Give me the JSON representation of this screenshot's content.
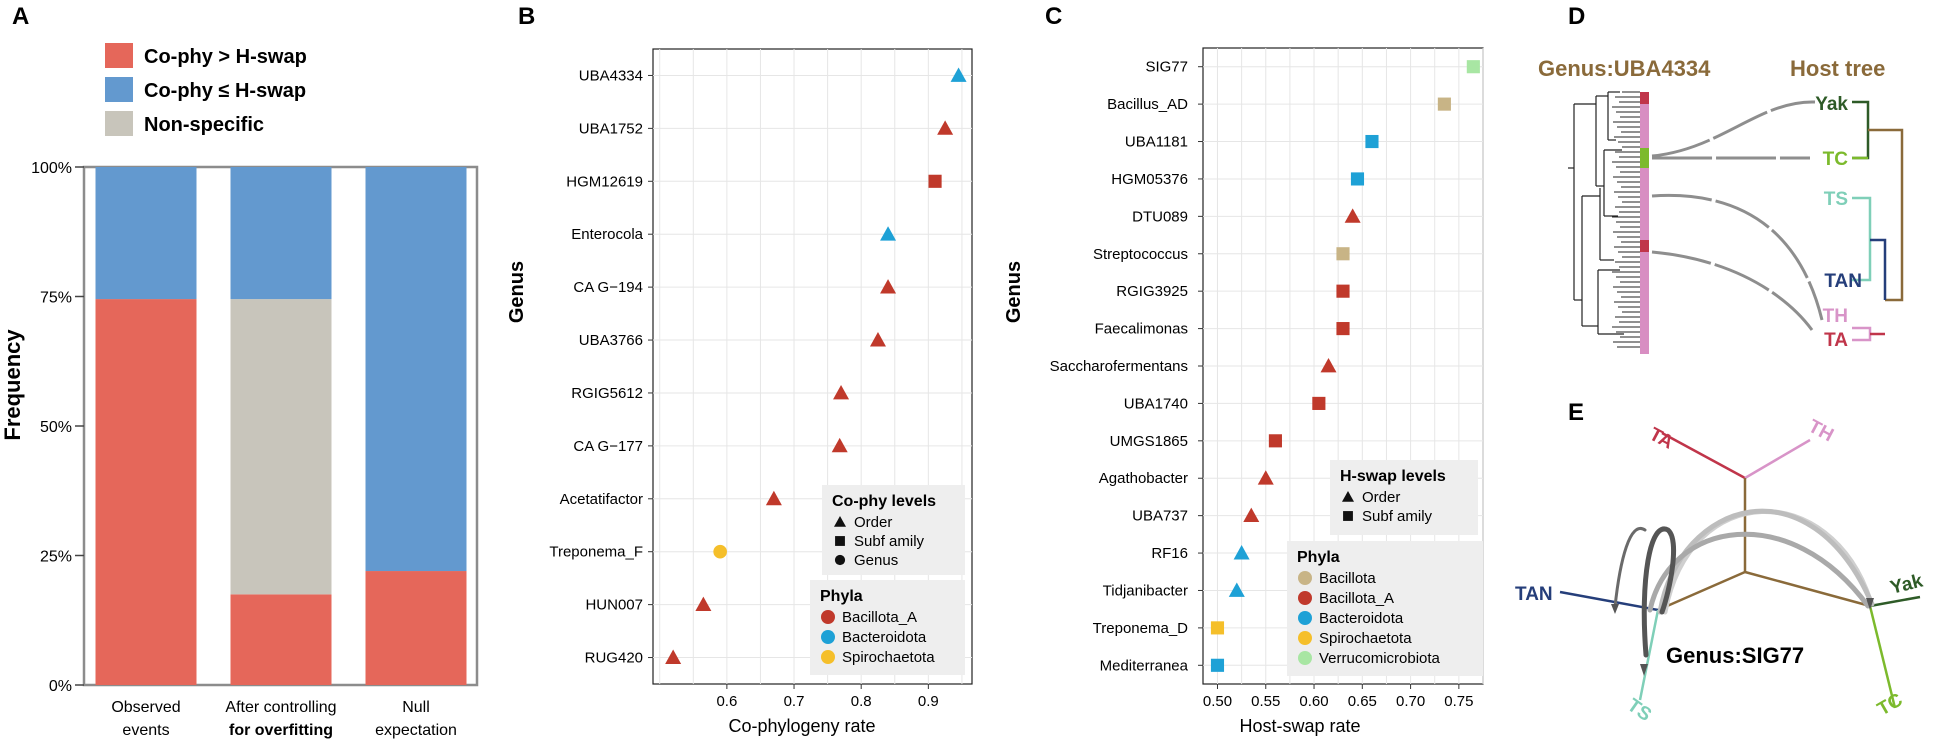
{
  "panels": {
    "A": "A",
    "B": "B",
    "C": "C",
    "D": "D",
    "E": "E"
  },
  "chart_data": [
    {
      "id": "A",
      "type": "bar",
      "stacked": true,
      "xlabel": "",
      "ylabel": "Frequency",
      "ylim": [
        0,
        100
      ],
      "yticks": [
        "0%",
        "25%",
        "50%",
        "75%",
        "100%"
      ],
      "categories": [
        {
          "line1": "Observed",
          "line2": "events",
          "bold2": false
        },
        {
          "line1": "After controlling",
          "line2": "for overfitting",
          "bold2": true
        },
        {
          "line1": "Null",
          "line2": "expectation",
          "bold2": false
        }
      ],
      "series": [
        {
          "name": "Co-phy > H-swap",
          "color": "#e5675a",
          "values": [
            74.5,
            17.5,
            22
          ]
        },
        {
          "name": "Non-specific",
          "color": "#c8c5bb",
          "values": [
            0,
            57,
            0
          ]
        },
        {
          "name": "Co-phy ≤ H-swap",
          "color": "#6399cf",
          "values": [
            25.5,
            25.5,
            78
          ]
        }
      ],
      "legend": [
        "Co-phy > H-swap",
        "Co-phy ≤ H-swap",
        "Non-specific"
      ],
      "legend_colors": [
        "#e5675a",
        "#6399cf",
        "#c8c5bb"
      ]
    },
    {
      "id": "B",
      "type": "scatter",
      "xlabel": "Co-phylogeny rate",
      "ylabel": "Genus",
      "xlim": [
        0.49,
        0.965
      ],
      "xticks": [
        0.6,
        0.7,
        0.8,
        0.9
      ],
      "points": [
        {
          "genus": "UBA4334",
          "x": 0.945,
          "phylum": "Bacteroidota",
          "level": "Order"
        },
        {
          "genus": "UBA1752",
          "x": 0.925,
          "phylum": "Bacillota_A",
          "level": "Order"
        },
        {
          "genus": "HGM12619",
          "x": 0.91,
          "phylum": "Bacillota_A",
          "level": "Subfamily"
        },
        {
          "genus": "Enterocola",
          "x": 0.84,
          "phylum": "Bacteroidota",
          "level": "Order"
        },
        {
          "genus": "CA G−194",
          "x": 0.84,
          "phylum": "Bacillota_A",
          "level": "Order"
        },
        {
          "genus": "UBA3766",
          "x": 0.825,
          "phylum": "Bacillota_A",
          "level": "Order"
        },
        {
          "genus": "RGIG5612",
          "x": 0.77,
          "phylum": "Bacillota_A",
          "level": "Order"
        },
        {
          "genus": "CA G−177",
          "x": 0.768,
          "phylum": "Bacillota_A",
          "level": "Order"
        },
        {
          "genus": "Acetatifactor",
          "x": 0.67,
          "phylum": "Bacillota_A",
          "level": "Order"
        },
        {
          "genus": "Treponema_F",
          "x": 0.59,
          "phylum": "Spirochaetota",
          "level": "Genus"
        },
        {
          "genus": "HUN007",
          "x": 0.565,
          "phylum": "Bacillota_A",
          "level": "Order"
        },
        {
          "genus": "RUG420",
          "x": 0.52,
          "phylum": "Bacillota_A",
          "level": "Order"
        }
      ],
      "legend_shape_title": "Co-phy levels",
      "legend_shapes": [
        {
          "label": "Order",
          "shape": "triangle"
        },
        {
          "label": "Subf amily",
          "shape": "square"
        },
        {
          "label": "Genus",
          "shape": "circle"
        }
      ],
      "legend_color_title": "Phyla",
      "legend_colors": [
        {
          "label": "Bacillota_A",
          "color": "#c0392b"
        },
        {
          "label": "Bacteroidota",
          "color": "#1ea1d6"
        },
        {
          "label": "Spirochaetota",
          "color": "#f5bf2a"
        }
      ]
    },
    {
      "id": "C",
      "type": "scatter",
      "xlabel": "Host-swap rate",
      "ylabel": "Genus",
      "xlim": [
        0.485,
        0.775
      ],
      "xticks": [
        0.5,
        0.55,
        0.6,
        0.65,
        0.7,
        0.75
      ],
      "xticklabels": [
        "0.50",
        "0.55",
        "0.60",
        "0.65",
        "0.70",
        "0.75"
      ],
      "points": [
        {
          "genus": "SIG77",
          "x": 0.765,
          "phylum": "Verrucomicrobiota",
          "level": "Subfamily"
        },
        {
          "genus": "Bacillus_AD",
          "x": 0.735,
          "phylum": "Bacillota",
          "level": "Subfamily"
        },
        {
          "genus": "UBA1181",
          "x": 0.66,
          "phylum": "Bacteroidota",
          "level": "Subfamily"
        },
        {
          "genus": "HGM05376",
          "x": 0.645,
          "phylum": "Bacteroidota",
          "level": "Subfamily"
        },
        {
          "genus": "DTU089",
          "x": 0.64,
          "phylum": "Bacillota_A",
          "level": "Order"
        },
        {
          "genus": "Streptococcus",
          "x": 0.63,
          "phylum": "Bacillota",
          "level": "Subfamily"
        },
        {
          "genus": "RGIG3925",
          "x": 0.63,
          "phylum": "Bacillota_A",
          "level": "Subfamily"
        },
        {
          "genus": "Faecalimonas",
          "x": 0.63,
          "phylum": "Bacillota_A",
          "level": "Subfamily"
        },
        {
          "genus": "Saccharofermentans",
          "x": 0.615,
          "phylum": "Bacillota_A",
          "level": "Order"
        },
        {
          "genus": "UBA1740",
          "x": 0.605,
          "phylum": "Bacillota_A",
          "level": "Subfamily"
        },
        {
          "genus": "UMGS1865",
          "x": 0.56,
          "phylum": "Bacillota_A",
          "level": "Subfamily"
        },
        {
          "genus": "Agathobacter",
          "x": 0.55,
          "phylum": "Bacillota_A",
          "level": "Order"
        },
        {
          "genus": "UBA737",
          "x": 0.535,
          "phylum": "Bacillota_A",
          "level": "Order"
        },
        {
          "genus": "RF16",
          "x": 0.525,
          "phylum": "Bacteroidota",
          "level": "Order"
        },
        {
          "genus": "Tidjanibacter",
          "x": 0.52,
          "phylum": "Bacteroidota",
          "level": "Order"
        },
        {
          "genus": "Treponema_D",
          "x": 0.5,
          "phylum": "Spirochaetota",
          "level": "Subfamily"
        },
        {
          "genus": "Mediterranea",
          "x": 0.5,
          "phylum": "Bacteroidota",
          "level": "Subfamily"
        }
      ],
      "legend_shape_title": "H-swap levels",
      "legend_shapes": [
        {
          "label": "Order",
          "shape": "triangle"
        },
        {
          "label": "Subf amily",
          "shape": "square"
        }
      ],
      "legend_color_title": "Phyla",
      "legend_colors": [
        {
          "label": "Bacillota",
          "color": "#c8b486"
        },
        {
          "label": "Bacillota_A",
          "color": "#c0392b"
        },
        {
          "label": "Bacteroidota",
          "color": "#1ea1d6"
        },
        {
          "label": "Spirochaetota",
          "color": "#f5bf2a"
        },
        {
          "label": "Verrucomicrobiota",
          "color": "#a8e6a3"
        }
      ]
    }
  ],
  "panel_d": {
    "genus_title": "Genus:UBA4334",
    "host_title": "Host tree",
    "hosts": [
      "Yak",
      "TC",
      "TS",
      "TAN",
      "TH",
      "TA"
    ],
    "colors": {
      "Yak": "#2e5b27",
      "TC": "#7cba2c",
      "TS": "#7fcfb8",
      "TAN": "#253e7a",
      "TH": "#d894c8",
      "TA": "#c0354a",
      "title": "#8a6a3a"
    }
  },
  "panel_e": {
    "label": "Genus:SIG77",
    "hosts": [
      "TA",
      "TH",
      "TAN",
      "Yak",
      "TS",
      "TC"
    ]
  }
}
